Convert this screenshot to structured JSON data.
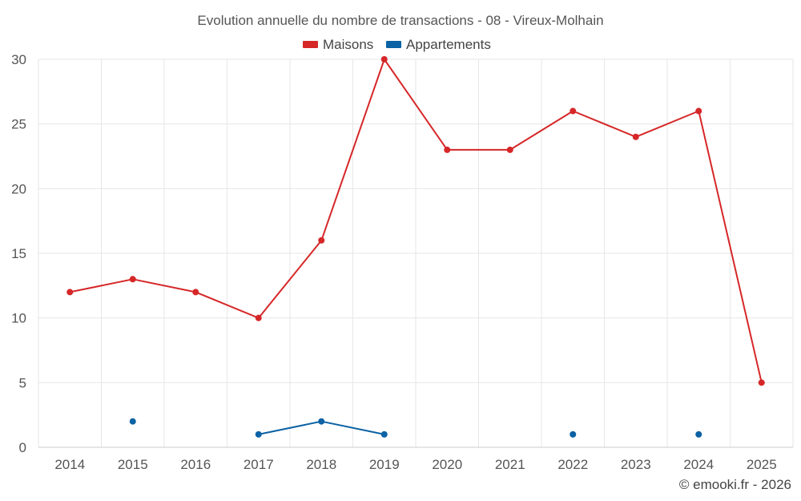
{
  "chart_data": {
    "type": "line",
    "title": "Evolution annuelle du nombre de transactions - 08 - Vireux-Molhain",
    "categories": [
      "2014",
      "2015",
      "2016",
      "2017",
      "2018",
      "2019",
      "2020",
      "2021",
      "2022",
      "2023",
      "2024",
      "2025"
    ],
    "ylim": [
      0,
      30
    ],
    "yticks": [
      "0",
      "5",
      "10",
      "15",
      "20",
      "25",
      "30"
    ],
    "grid": true,
    "legend_position": "top-center",
    "series": [
      {
        "name": "Maisons",
        "color": "#d62728",
        "values": [
          12,
          13,
          12,
          10,
          16,
          30,
          23,
          23,
          26,
          24,
          26,
          5
        ]
      },
      {
        "name": "Appartements",
        "color": "#0b62a4",
        "values": [
          null,
          2,
          null,
          1,
          2,
          1,
          null,
          null,
          1,
          null,
          1,
          null
        ]
      }
    ]
  },
  "credit": "© emooki.fr - 2026"
}
